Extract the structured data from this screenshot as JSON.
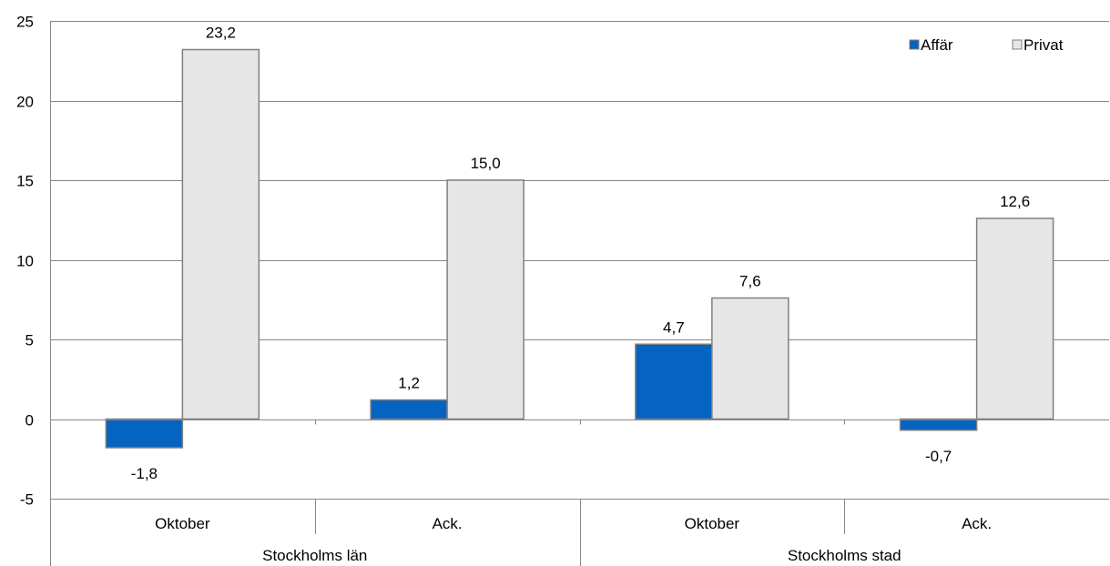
{
  "chart_data": {
    "type": "bar",
    "title": "",
    "xlabel": "",
    "ylabel": "",
    "ylim": [
      -5,
      25
    ],
    "yticks": [
      -5,
      0,
      5,
      10,
      15,
      20,
      25
    ],
    "grid": true,
    "legend_position": "top-right",
    "groups": [
      {
        "label": "Stockholms län",
        "categories": [
          "Oktober",
          "Ack."
        ]
      },
      {
        "label": "Stockholms stad",
        "categories": [
          "Oktober",
          "Ack."
        ]
      }
    ],
    "categories": [
      "Oktober",
      "Ack.",
      "Oktober",
      "Ack."
    ],
    "series": [
      {
        "name": "Affär",
        "color": "#0563c1",
        "values": [
          -1.8,
          1.2,
          4.7,
          -0.7
        ],
        "labels": [
          "-1,8",
          "1,2",
          "4,7",
          "-0,7"
        ]
      },
      {
        "name": "Privat",
        "color": "#e6e6e6",
        "values": [
          23.2,
          15.0,
          7.6,
          12.6
        ],
        "labels": [
          "23,2",
          "15,0",
          "7,6",
          "12,6"
        ]
      }
    ]
  }
}
